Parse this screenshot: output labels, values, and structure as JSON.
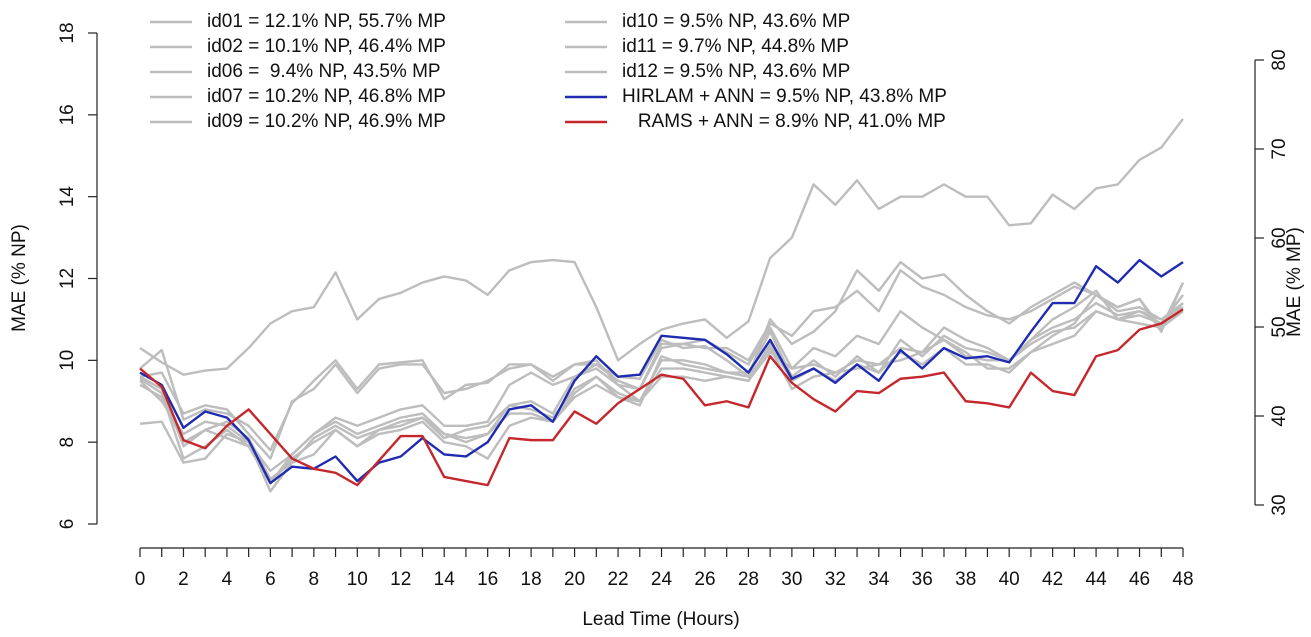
{
  "chart_data": {
    "type": "line",
    "xlabel": "Lead Time (Hours)",
    "ylabel": "MAE (% NP)",
    "y2label": "MAE (% MP)",
    "x": [
      0,
      1,
      2,
      3,
      4,
      5,
      6,
      7,
      8,
      9,
      10,
      11,
      12,
      13,
      14,
      15,
      16,
      17,
      18,
      19,
      20,
      21,
      22,
      23,
      24,
      25,
      26,
      27,
      28,
      29,
      30,
      31,
      32,
      33,
      34,
      35,
      36,
      37,
      38,
      39,
      40,
      41,
      42,
      43,
      44,
      45,
      46,
      47,
      48
    ],
    "xlim": [
      0,
      48
    ],
    "xticks": [
      0,
      2,
      4,
      6,
      8,
      10,
      12,
      14,
      16,
      18,
      20,
      22,
      24,
      26,
      28,
      30,
      32,
      34,
      36,
      38,
      40,
      42,
      44,
      46,
      48
    ],
    "xminor_ticks": [
      1,
      3,
      5,
      7,
      9,
      11,
      13,
      15,
      17,
      19,
      21,
      23,
      25,
      27,
      29,
      31,
      33,
      35,
      37,
      39,
      41,
      43,
      45,
      47
    ],
    "ylim": [
      6,
      18
    ],
    "yticks": [
      6,
      8,
      10,
      12,
      14,
      16,
      18
    ],
    "y2lim": [
      30,
      80
    ],
    "y2ticks": [
      30,
      40,
      50,
      60,
      70,
      80
    ],
    "series": [
      {
        "name": "id01 = 12.1% NP, 55.7% MP",
        "color": "#bdbdbd",
        "values": [
          10.3,
          9.95,
          9.65,
          9.75,
          9.8,
          10.3,
          10.9,
          11.2,
          11.3,
          12.15,
          11.0,
          11.5,
          11.65,
          11.9,
          12.05,
          11.95,
          11.6,
          12.2,
          12.4,
          12.45,
          12.4,
          11.3,
          10.0,
          10.4,
          10.75,
          10.9,
          11.0,
          10.55,
          10.95,
          12.5,
          13.0,
          14.3,
          13.8,
          14.4,
          13.7,
          14.0,
          14.0,
          14.3,
          14.0,
          14.0,
          13.3,
          13.35,
          14.05,
          13.7,
          14.2,
          14.3,
          14.9,
          15.2,
          15.9
        ]
      },
      {
        "name": "id02 = 10.1% NP, 46.4% MP",
        "color": "#bdbdbd",
        "values": [
          9.8,
          10.25,
          8.55,
          8.8,
          8.7,
          8.4,
          7.8,
          8.95,
          9.5,
          10.0,
          9.3,
          9.9,
          9.95,
          10.0,
          9.05,
          9.4,
          9.45,
          9.9,
          9.9,
          9.6,
          9.9,
          9.9,
          9.6,
          9.55,
          10.5,
          10.3,
          10.35,
          10.0,
          9.6,
          11.0,
          10.4,
          10.7,
          11.2,
          12.2,
          11.7,
          12.4,
          12.0,
          12.1,
          11.6,
          11.2,
          10.9,
          11.3,
          11.6,
          11.9,
          11.6,
          11.3,
          11.5,
          10.7,
          11.9
        ]
      },
      {
        "name": "id06 =  9.4% NP, 43.5% MP",
        "color": "#bdbdbd",
        "values": [
          9.5,
          9.0,
          8.2,
          8.5,
          8.4,
          8.0,
          6.8,
          7.5,
          7.7,
          8.3,
          7.9,
          8.3,
          8.4,
          8.6,
          8.1,
          8.3,
          8.4,
          8.9,
          9.0,
          8.7,
          9.6,
          9.8,
          9.4,
          9.0,
          10.0,
          10.0,
          9.9,
          9.7,
          9.7,
          10.7,
          9.6,
          10.0,
          9.6,
          10.1,
          9.7,
          10.2,
          9.9,
          10.3,
          9.9,
          9.9,
          9.7,
          10.2,
          10.6,
          10.9,
          11.6,
          11.2,
          11.3,
          11.0,
          11.4
        ]
      },
      {
        "name": "id07 = 10.2% NP, 46.8% MP",
        "color": "#bdbdbd",
        "values": [
          8.45,
          8.5,
          7.5,
          7.6,
          8.2,
          8.0,
          7.3,
          7.7,
          8.2,
          8.6,
          8.4,
          8.6,
          8.8,
          8.9,
          8.4,
          8.4,
          8.5,
          9.4,
          9.7,
          9.4,
          9.6,
          9.9,
          9.5,
          9.3,
          10.3,
          10.4,
          10.5,
          10.2,
          9.9,
          10.8,
          9.8,
          10.3,
          10.1,
          10.6,
          10.4,
          11.2,
          10.8,
          10.5,
          10.1,
          10.0,
          10.0,
          10.5,
          11.0,
          11.3,
          11.7,
          11.0,
          11.2,
          11.0,
          11.3
        ]
      },
      {
        "name": "id09 = 10.2% NP, 46.9% MP",
        "color": "#bdbdbd",
        "values": [
          9.6,
          9.7,
          8.7,
          8.9,
          8.8,
          8.2,
          7.6,
          9.0,
          9.3,
          9.9,
          9.2,
          9.8,
          9.9,
          9.9,
          9.2,
          9.3,
          9.5,
          9.8,
          9.9,
          9.5,
          9.9,
          10.0,
          9.4,
          9.3,
          10.4,
          10.4,
          10.3,
          10.3,
          10.0,
          10.9,
          10.6,
          11.2,
          11.3,
          11.7,
          11.2,
          12.2,
          11.8,
          11.6,
          11.3,
          11.1,
          11.0,
          11.2,
          11.5,
          11.8,
          11.6,
          11.3,
          11.5,
          10.8,
          11.9
        ]
      },
      {
        "name": "id10 = 9.5% NP, 43.6% MP",
        "color": "#bdbdbd",
        "values": [
          9.6,
          9.3,
          7.9,
          8.3,
          8.5,
          8.1,
          7.1,
          7.5,
          8.1,
          8.4,
          8.1,
          8.3,
          8.5,
          8.6,
          8.2,
          8.0,
          8.2,
          8.9,
          8.8,
          8.6,
          9.3,
          9.6,
          9.1,
          8.9,
          10.1,
          9.9,
          9.8,
          9.7,
          9.6,
          10.3,
          9.3,
          9.6,
          9.7,
          9.8,
          9.9,
          10.3,
          10.2,
          10.8,
          10.5,
          10.3,
          10.0,
          10.5,
          10.8,
          11.0,
          11.4,
          11.1,
          11.2,
          10.9,
          11.6
        ]
      },
      {
        "name": "id11 = 9.7% NP, 44.8% MP",
        "color": "#bdbdbd",
        "values": [
          9.4,
          9.1,
          8.0,
          8.3,
          8.1,
          7.9,
          7.0,
          7.6,
          8.0,
          8.3,
          7.9,
          8.2,
          8.3,
          8.5,
          8.0,
          7.9,
          7.6,
          8.4,
          8.6,
          8.5,
          9.1,
          9.4,
          9.1,
          9.0,
          9.6,
          9.6,
          9.5,
          9.6,
          9.5,
          10.2,
          9.8,
          9.9,
          9.7,
          10.0,
          9.9,
          10.0,
          10.2,
          10.5,
          10.2,
          9.8,
          9.8,
          10.2,
          10.4,
          10.6,
          11.2,
          11.0,
          10.9,
          10.8,
          11.2
        ]
      },
      {
        "name": "id12 = 9.5% NP, 43.6% MP",
        "color": "#bdbdbd",
        "values": [
          9.55,
          9.2,
          7.6,
          7.9,
          8.3,
          7.9,
          7.0,
          7.7,
          8.2,
          8.5,
          8.2,
          8.4,
          8.6,
          8.7,
          8.2,
          8.1,
          8.2,
          8.7,
          8.7,
          8.5,
          9.2,
          9.6,
          9.2,
          9.0,
          9.8,
          9.8,
          9.7,
          9.6,
          9.5,
          10.4,
          9.5,
          9.8,
          9.5,
          9.9,
          9.7,
          10.5,
          10.1,
          10.6,
          10.3,
          10.2,
          10.0,
          10.4,
          10.7,
          10.8,
          11.2,
          11.0,
          11.1,
          10.9,
          11.4
        ]
      },
      {
        "name": "HIRLAM + ANN = 9.5% NP, 43.8% MP",
        "color": "#1f2bb0",
        "values": [
          9.7,
          9.4,
          8.35,
          8.75,
          8.6,
          8.05,
          7.0,
          7.4,
          7.35,
          7.65,
          7.05,
          7.5,
          7.65,
          8.1,
          7.7,
          7.65,
          8.0,
          8.8,
          8.9,
          8.5,
          9.5,
          10.1,
          9.6,
          9.65,
          10.6,
          10.55,
          10.5,
          10.15,
          9.7,
          10.5,
          9.55,
          9.8,
          9.45,
          9.9,
          9.5,
          10.25,
          9.8,
          10.3,
          10.05,
          10.1,
          9.95,
          10.7,
          11.4,
          11.4,
          12.3,
          11.9,
          12.45,
          12.05,
          12.4
        ]
      },
      {
        "name": "   RAMS + ANN = 8.9% NP, 41.0% MP",
        "color": "#c4282d",
        "values": [
          9.8,
          9.35,
          8.05,
          7.85,
          8.4,
          8.8,
          8.2,
          7.6,
          7.35,
          7.25,
          6.95,
          7.55,
          8.15,
          8.15,
          7.15,
          7.05,
          6.95,
          8.1,
          8.05,
          8.05,
          8.75,
          8.45,
          8.95,
          9.3,
          9.65,
          9.55,
          8.9,
          9.0,
          8.85,
          10.1,
          9.45,
          9.05,
          8.75,
          9.25,
          9.2,
          9.55,
          9.6,
          9.7,
          9.0,
          8.95,
          8.85,
          9.7,
          9.25,
          9.15,
          10.1,
          10.25,
          10.75,
          10.9,
          11.25
        ]
      }
    ]
  }
}
